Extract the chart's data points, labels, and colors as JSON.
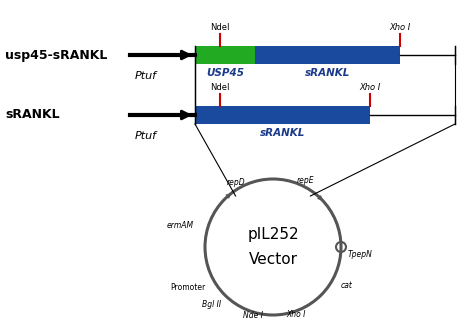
{
  "bg_color": "#ffffff",
  "usp45_label": "usp45-sRANKL",
  "srankl_label": "sRANKL",
  "ptuf_label": "Ptuf",
  "ndel_label": "NdeI",
  "xhoi_label": "Xho I",
  "usp45_gene_label": "USP45",
  "srankl_gene_label1": "sRANKL",
  "srankl_gene_label2": "sRANKL",
  "vector_name_line1": "pIL252",
  "vector_name_line2": "Vector",
  "green_color": "#22aa22",
  "blue_color": "#1a4a9e",
  "red_color": "#cc0000",
  "circle_color": "#555555",
  "italic_blue": "#1a3a8a",
  "black": "#000000",
  "arrow_lw": 3.0,
  "bar_lw": 0,
  "label_fs": 5.5,
  "gene_fs": 7.5,
  "construct_label_fs": 9,
  "vector_fs": 11
}
